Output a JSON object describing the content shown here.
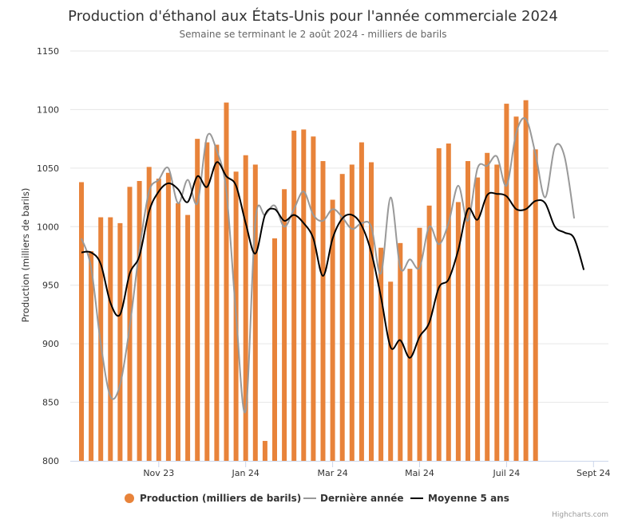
{
  "chart_data": {
    "type": "bar",
    "title": "Production d'éthanol aux États-Unis pour l'année commerciale 2024",
    "subtitle": "Semaine se terminant le 2 août 2024 - milliers de barils",
    "ylabel": "Production (milliers de barils)",
    "ylim": [
      800,
      1150
    ],
    "yticks": [
      800,
      850,
      900,
      950,
      1000,
      1050,
      1100,
      1150
    ],
    "xlim": [
      0,
      56
    ],
    "xticks": [
      {
        "x": 8,
        "label": "Nov 23"
      },
      {
        "x": 17,
        "label": "Jan 24"
      },
      {
        "x": 26,
        "label": "Mar 24"
      },
      {
        "x": 35,
        "label": "Mai 24"
      },
      {
        "x": 44,
        "label": "Juil 24"
      },
      {
        "x": 53,
        "label": "Sept 24"
      }
    ],
    "grid": true,
    "legend_position": "bottom",
    "colors": {
      "production": "#e8833a",
      "last_year": "#999999",
      "avg5": "#000000"
    },
    "series": [
      {
        "name": "Production (milliers de barils)",
        "type": "bar",
        "values": [
          1038,
          979,
          1008,
          1008,
          1003,
          1034,
          1039,
          1051,
          1041,
          1046,
          1020,
          1010,
          1075,
          1072,
          1070,
          1106,
          1047,
          1061,
          1053,
          817,
          990,
          1032,
          1082,
          1083,
          1077,
          1056,
          1023,
          1045,
          1053,
          1072,
          1055,
          982,
          953,
          986,
          964,
          999,
          1018,
          1067,
          1071,
          1021,
          1056,
          1042,
          1063,
          1053,
          1105,
          1094,
          1108,
          1066
        ]
      },
      {
        "name": "Dernière année",
        "type": "line",
        "values": [
          990,
          965,
          900,
          855,
          865,
          915,
          980,
          1030,
          1040,
          1050,
          1020,
          1040,
          1020,
          1077,
          1065,
          1030,
          925,
          843,
          1005,
          1010,
          1018,
          1000,
          1015,
          1030,
          1010,
          1005,
          1015,
          1008,
          998,
          1003,
          1000,
          960,
          1025,
          965,
          972,
          965,
          1000,
          985,
          1003,
          1035,
          1005,
          1050,
          1052,
          1060,
          1035,
          1080,
          1092,
          1062,
          1025,
          1068,
          1060,
          1007
        ]
      },
      {
        "name": "Moyenne 5 ans",
        "type": "line",
        "values": [
          978,
          978,
          968,
          935,
          925,
          960,
          975,
          1013,
          1030,
          1037,
          1032,
          1021,
          1043,
          1034,
          1055,
          1043,
          1035,
          1003,
          977,
          1010,
          1015,
          1005,
          1010,
          1003,
          990,
          958,
          990,
          1007,
          1010,
          1001,
          978,
          940,
          897,
          903,
          888,
          906,
          918,
          948,
          955,
          980,
          1015,
          1006,
          1027,
          1028,
          1026,
          1015,
          1015,
          1022,
          1020,
          1000,
          995,
          990,
          963
        ]
      }
    ],
    "credits": "Highcharts.com"
  }
}
